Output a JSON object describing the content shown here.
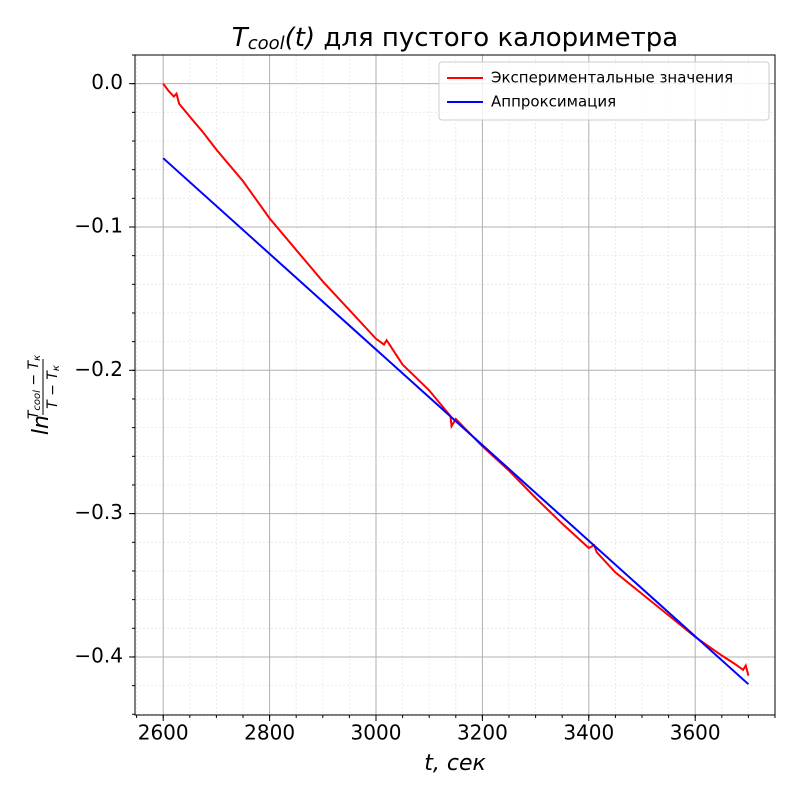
{
  "chart_data": {
    "type": "line",
    "title": [
      "T",
      "cool",
      "(t)",
      " для пустого калориметра"
    ],
    "xlabel": "t, сек",
    "ylabel": {
      "prefix": "ln",
      "numerator": [
        "T",
        "cool",
        " − T",
        "к"
      ],
      "denominator": [
        "T − T",
        "к"
      ]
    },
    "xlim": [
      2547,
      3750
    ],
    "ylim": [
      -0.4405,
      0.02
    ],
    "xticks": [
      2600,
      2800,
      3000,
      3200,
      3400,
      3600
    ],
    "yticks": [
      {
        "value": 0,
        "label": "0.0"
      },
      {
        "value": -0.1,
        "label": "−0.1"
      },
      {
        "value": -0.2,
        "label": "−0.2"
      },
      {
        "value": -0.3,
        "label": "−0.3"
      },
      {
        "value": -0.4,
        "label": "−0.4"
      }
    ],
    "grid": true,
    "minor_grid": true,
    "xminor": 4,
    "yminor": 5,
    "legend": "upper right",
    "series": [
      {
        "name": "Экспериментальные значения",
        "color": "#ff0000",
        "x": [
          2600,
          2610,
          2620,
          2625,
          2630,
          2650,
          2675,
          2700,
          2750,
          2800,
          2850,
          2900,
          2950,
          3000,
          3015,
          3020,
          3050,
          3100,
          3140,
          3142,
          3150,
          3200,
          3250,
          3300,
          3350,
          3400,
          3410,
          3415,
          3450,
          3500,
          3550,
          3600,
          3650,
          3675,
          3690,
          3695,
          3700
        ],
        "values": [
          0.0,
          -0.005,
          -0.009,
          -0.007,
          -0.014,
          -0.023,
          -0.034,
          -0.046,
          -0.068,
          -0.094,
          -0.116,
          -0.138,
          -0.158,
          -0.178,
          -0.182,
          -0.179,
          -0.196,
          -0.214,
          -0.232,
          -0.239,
          -0.234,
          -0.253,
          -0.27,
          -0.289,
          -0.307,
          -0.324,
          -0.322,
          -0.327,
          -0.341,
          -0.356,
          -0.371,
          -0.386,
          -0.399,
          -0.405,
          -0.409,
          -0.406,
          -0.413
        ]
      },
      {
        "name": "Аппроксимация",
        "color": "#0000ff",
        "x": [
          2600,
          3700
        ],
        "values": [
          -0.052,
          -0.419
        ]
      }
    ]
  }
}
